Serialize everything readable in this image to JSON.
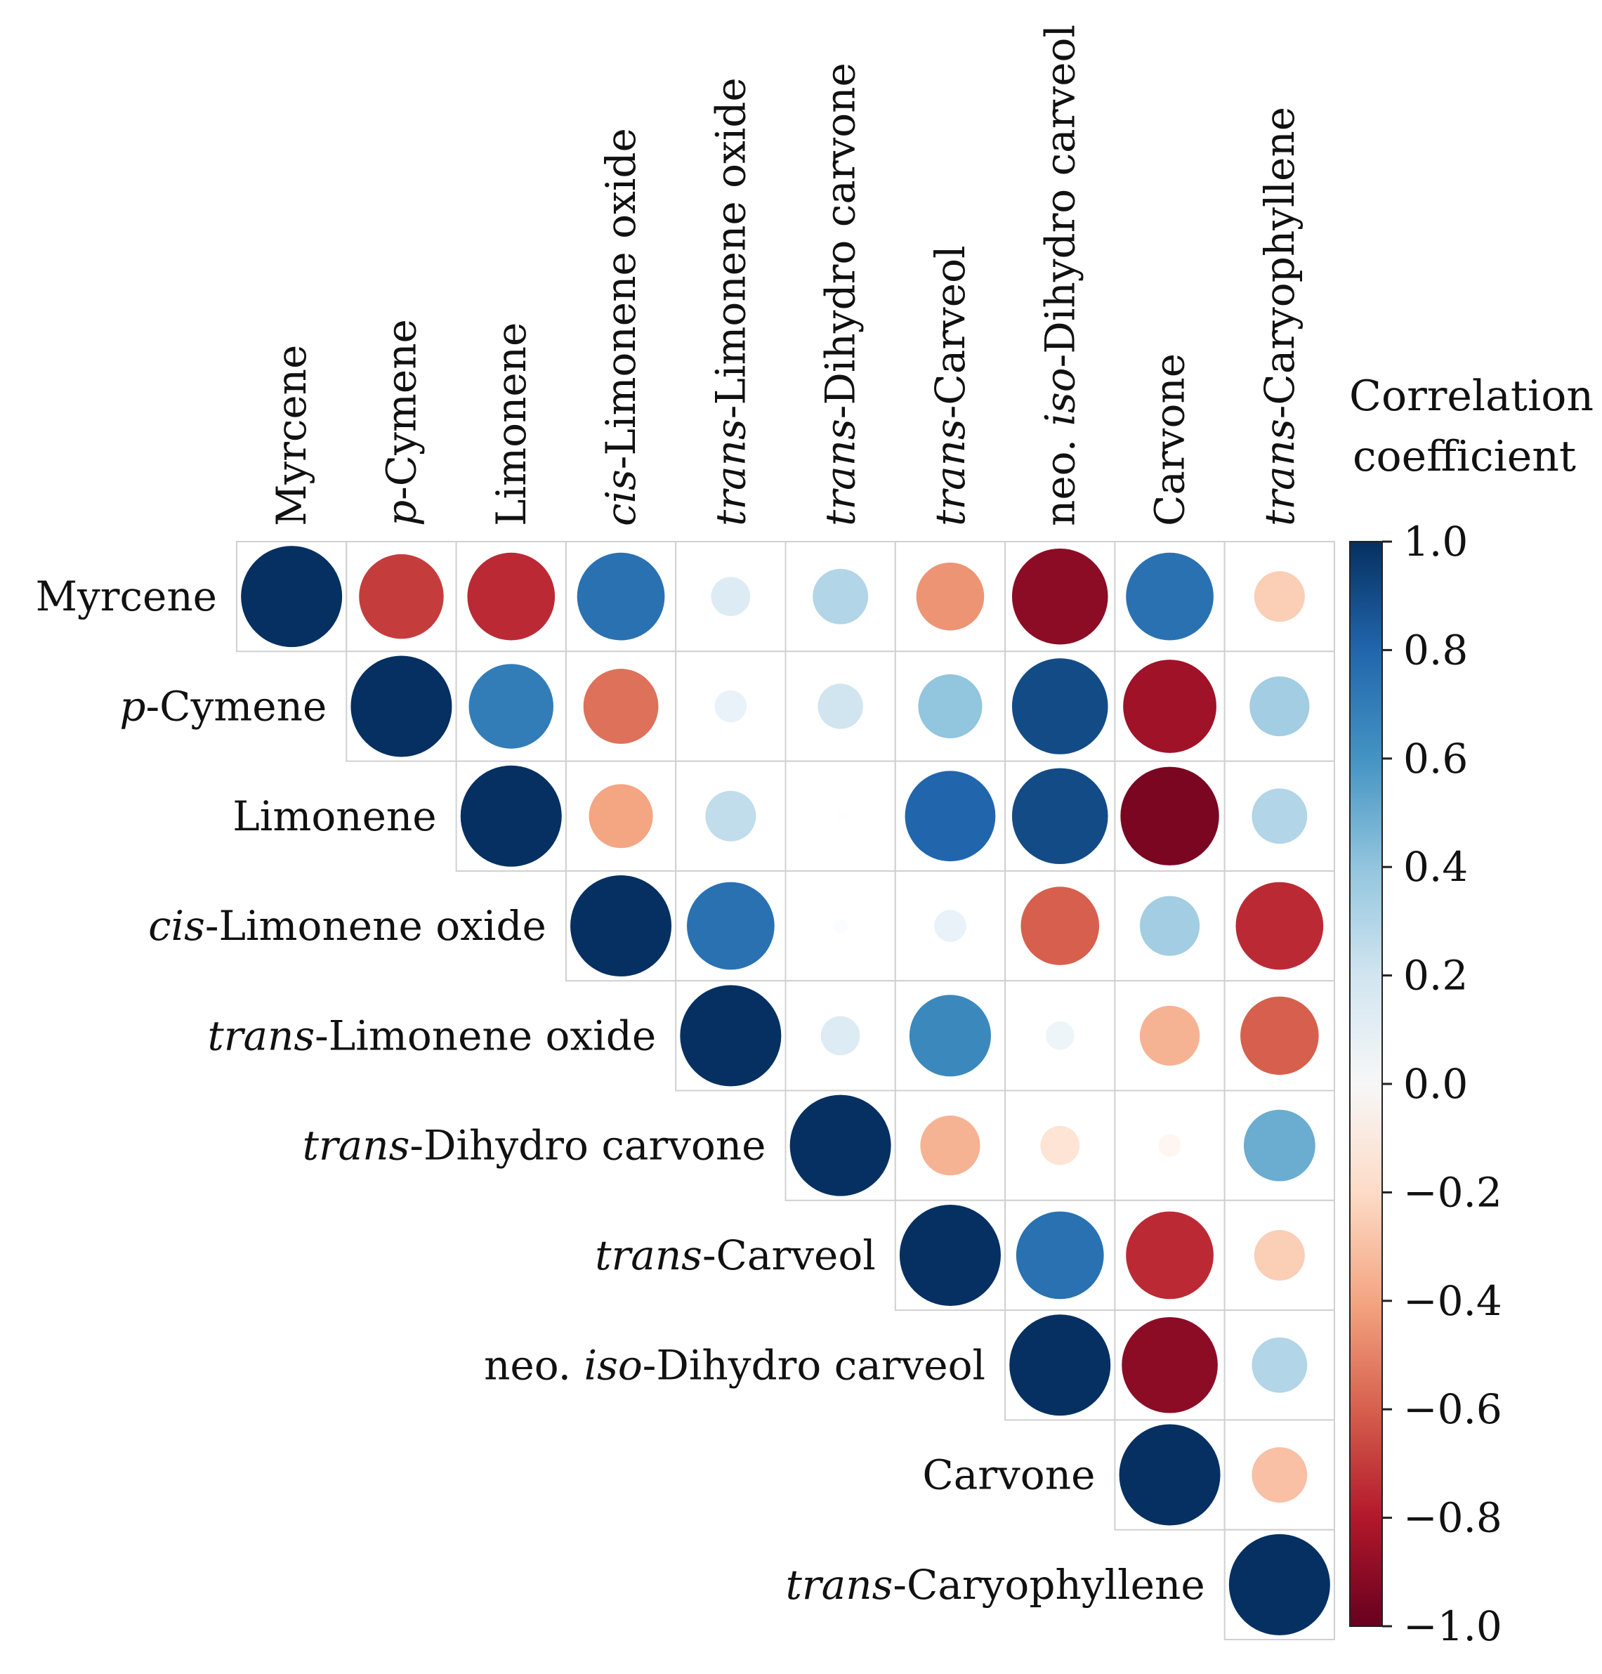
{
  "chart_data": {
    "type": "heatmap",
    "style": "upper-triangular circle correlation matrix",
    "variables": [
      {
        "prefix": "",
        "name": "Myrcene"
      },
      {
        "prefix": "p",
        "name": "-Cymene"
      },
      {
        "prefix": "",
        "name": "Limonene"
      },
      {
        "prefix": "cis",
        "name": "-Limonene oxide"
      },
      {
        "prefix": "trans",
        "name": "-Limonene oxide"
      },
      {
        "prefix": "trans",
        "name": "-Dihydro carvone"
      },
      {
        "prefix": "trans",
        "name": "-Carveol"
      },
      {
        "prefix": "neo. ",
        "prefix_italic": "iso",
        "name": "-Dihydro carveol"
      },
      {
        "prefix": "",
        "name": "Carvone"
      },
      {
        "prefix": "trans",
        "name": "-Caryophyllene"
      }
    ],
    "matrix": [
      [
        1.0,
        -0.7,
        -0.75,
        0.75,
        0.15,
        0.3,
        -0.45,
        -0.9,
        0.75,
        -0.25
      ],
      [
        null,
        1.0,
        0.7,
        -0.55,
        0.1,
        0.2,
        0.4,
        0.9,
        -0.85,
        0.35
      ],
      [
        null,
        null,
        1.0,
        -0.4,
        0.25,
        0.01,
        0.8,
        0.9,
        -0.95,
        0.3
      ],
      [
        null,
        null,
        null,
        1.0,
        0.75,
        0.02,
        0.1,
        -0.6,
        0.35,
        -0.75
      ],
      [
        null,
        null,
        null,
        null,
        1.0,
        0.15,
        0.65,
        0.08,
        -0.35,
        -0.6
      ],
      [
        null,
        null,
        null,
        null,
        null,
        1.0,
        -0.35,
        -0.15,
        -0.05,
        0.5
      ],
      [
        null,
        null,
        null,
        null,
        null,
        null,
        1.0,
        0.75,
        -0.75,
        -0.25
      ],
      [
        null,
        null,
        null,
        null,
        null,
        null,
        null,
        1.0,
        -0.9,
        0.3
      ],
      [
        null,
        null,
        null,
        null,
        null,
        null,
        null,
        null,
        1.0,
        -0.3
      ],
      [
        null,
        null,
        null,
        null,
        null,
        null,
        null,
        null,
        null,
        1.0
      ]
    ],
    "colorbar": {
      "title_lines": [
        "Correlation",
        "coefficient"
      ],
      "range": [
        -1.0,
        1.0
      ],
      "ticks": [
        "1.0",
        "0.8",
        "0.6",
        "0.4",
        "0.2",
        "0.0",
        "−0.2",
        "−0.4",
        "−0.6",
        "−0.8",
        "−1.0"
      ],
      "colormap": [
        "#67001f",
        "#b2182b",
        "#d6604d",
        "#f4a582",
        "#fddbc7",
        "#ffffff",
        "#d1e5f0",
        "#92c5de",
        "#4393c3",
        "#2166ac",
        "#053061"
      ]
    }
  }
}
